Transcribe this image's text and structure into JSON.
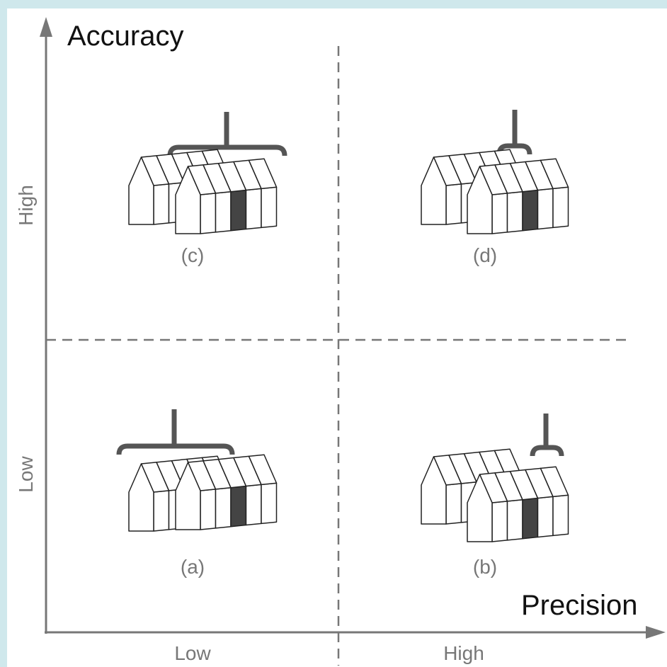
{
  "axes": {
    "y_label": "Accuracy",
    "x_label": "Precision",
    "y_ticks": [
      "Low",
      "High"
    ],
    "x_ticks": [
      "Low",
      "High"
    ]
  },
  "panels": [
    {
      "label": "(a)"
    },
    {
      "label": "(b)"
    },
    {
      "label": "(c)"
    },
    {
      "label": "(d)"
    }
  ]
}
